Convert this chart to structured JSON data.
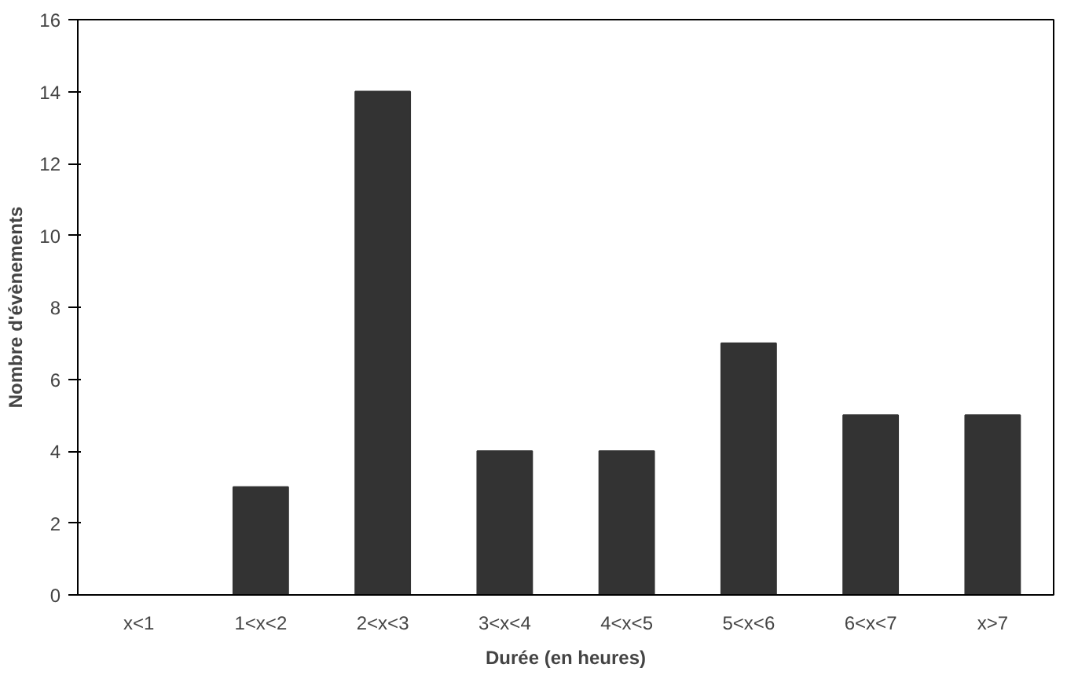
{
  "chart_data": {
    "type": "bar",
    "xlabel": "Durée (en heures)",
    "ylabel": "Nombre d'évènements",
    "categories": [
      "x<1",
      "1<x<2",
      "2<x<3",
      "3<x<4",
      "4<x<5",
      "5<x<6",
      "6<x<7",
      "x>7"
    ],
    "values": [
      0,
      3,
      14,
      4,
      4,
      7,
      5,
      5
    ],
    "color": "#333333",
    "ylim": [
      0,
      16
    ],
    "yticks": [
      0,
      2,
      4,
      6,
      8,
      10,
      12,
      14,
      16
    ],
    "grid": false
  }
}
